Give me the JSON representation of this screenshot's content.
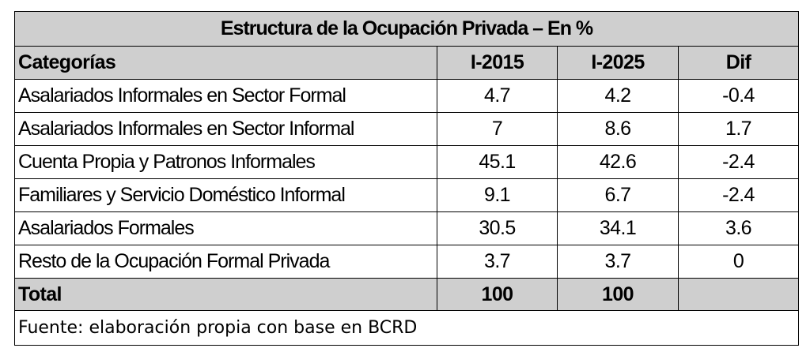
{
  "table": {
    "title": "Estructura de la Ocupación Privada – En %",
    "headers": [
      "Categorías",
      "I-2015",
      "I-2025",
      "Dif"
    ],
    "rows": [
      {
        "categoria": "Asalariados Informales en Sector Formal",
        "i2015": "4.7",
        "i2025": "4.2",
        "dif": "-0.4"
      },
      {
        "categoria": "Asalariados Informales en Sector Informal",
        "i2015": "7",
        "i2025": "8.6",
        "dif": "1.7"
      },
      {
        "categoria": "Cuenta Propia y Patronos Informales",
        "i2015": "45.1",
        "i2025": "42.6",
        "dif": "-2.4"
      },
      {
        "categoria": "Familiares y Servicio Doméstico Informal",
        "i2015": "9.1",
        "i2025": "6.7",
        "dif": "-2.4"
      },
      {
        "categoria": "Asalariados Formales",
        "i2015": "30.5",
        "i2025": "34.1",
        "dif": "3.6"
      },
      {
        "categoria": "Resto de la Ocupación Formal Privada",
        "i2015": "3.7",
        "i2025": "3.7",
        "dif": "0"
      }
    ],
    "total": {
      "categoria": "Total",
      "i2015": "100",
      "i2025": "100",
      "dif": ""
    },
    "source": "Fuente: elaboración propia con base en BCRD"
  }
}
